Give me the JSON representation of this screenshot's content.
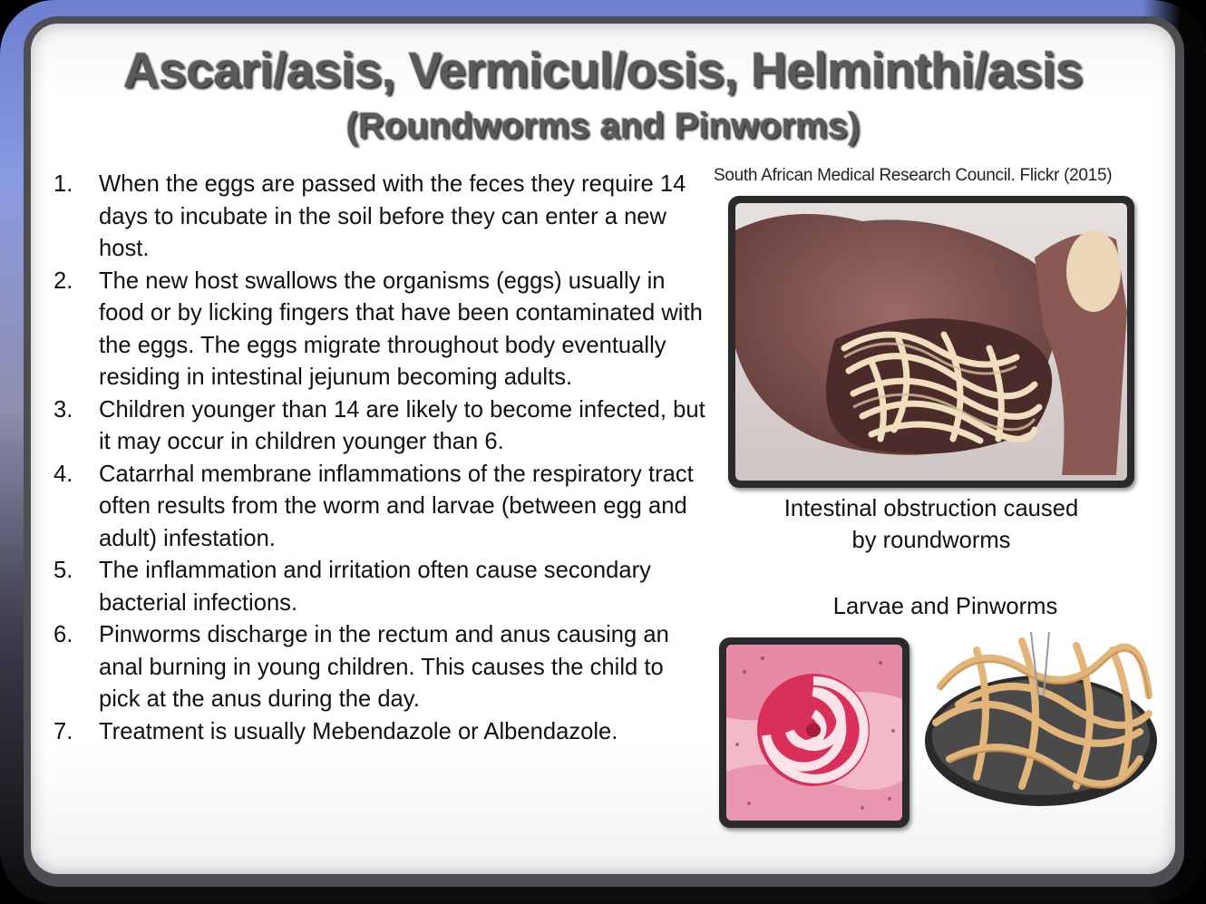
{
  "slide": {
    "title": "Ascari/asis, Vermicul/osis, Helminthi/asis",
    "subtitle": "(Roundworms and Pinworms)"
  },
  "list": [
    {
      "num": "1.",
      "text": "When the eggs are passed with the feces they require 14 days to incubate in the soil before they can enter a new host."
    },
    {
      "num": "2.",
      "text": "The new host swallows the organisms (eggs) usually in food or by licking fingers that have been contaminated with the eggs. The eggs migrate throughout body eventually residing in intestinal jejunum becoming adults."
    },
    {
      "num": "3.",
      "text": "Children younger than 14 are likely to become infected, but it may occur in children younger than 6."
    },
    {
      "num": "4.",
      "text": "Catarrhal membrane inflammations of the respiratory tract often results from the worm and larvae (between egg and adult) infestation."
    },
    {
      "num": "5.",
      "text": "The inflammation and irritation often cause secondary bacterial infections."
    },
    {
      "num": "6.",
      "text": "Pinworms discharge in the rectum and anus causing an anal burning in young children. This causes the child to pick at the anus during the day."
    },
    {
      "num": "7.",
      "text": "Treatment is usually Mebendazole or Albendazole."
    }
  ],
  "credit": "South African Medical Research Council. Flickr (2015)",
  "caption_main_line1": "Intestinal obstruction caused",
  "caption_main_line2": "by roundworms",
  "caption_secondary": "Larvae and Pinworms"
}
